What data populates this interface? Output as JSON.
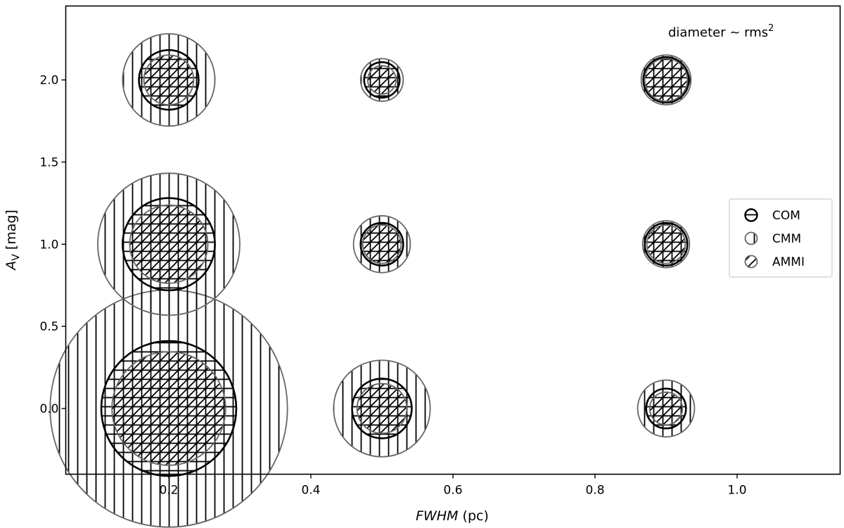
{
  "chart_data": {
    "type": "scatter",
    "xlabel_italic": "FWHM",
    "xlabel_rest": " (pc)",
    "ylabel_main": "A",
    "ylabel_sub": "V",
    "ylabel_rest": " [mag]",
    "annotation": "diameter ~ rms",
    "annotation_sup": "2",
    "xlim": [
      0.055,
      1.145
    ],
    "ylim": [
      -0.4,
      2.45
    ],
    "xticks": [
      0.2,
      0.4,
      0.6,
      0.8,
      1.0
    ],
    "yticks": [
      0.0,
      0.5,
      1.0,
      1.5,
      2.0
    ],
    "grid": false,
    "legend_position": "right",
    "series": [
      {
        "name": "COM",
        "hatch": "horizontal",
        "edge_color": "#000000",
        "points": [
          {
            "x": 0.2,
            "y": 2.0,
            "d": 0.084
          },
          {
            "x": 0.5,
            "y": 2.0,
            "d": 0.05
          },
          {
            "x": 0.9,
            "y": 2.0,
            "d": 0.064
          },
          {
            "x": 0.2,
            "y": 1.0,
            "d": 0.13
          },
          {
            "x": 0.5,
            "y": 1.0,
            "d": 0.06
          },
          {
            "x": 0.9,
            "y": 1.0,
            "d": 0.06
          },
          {
            "x": 0.2,
            "y": 0.0,
            "d": 0.19
          },
          {
            "x": 0.5,
            "y": 0.0,
            "d": 0.084
          },
          {
            "x": 0.9,
            "y": 0.0,
            "d": 0.056
          }
        ]
      },
      {
        "name": "CMM",
        "hatch": "vertical",
        "edge_color": "#666666",
        "points": [
          {
            "x": 0.2,
            "y": 2.0,
            "d": 0.13
          },
          {
            "x": 0.5,
            "y": 2.0,
            "d": 0.06
          },
          {
            "x": 0.9,
            "y": 2.0,
            "d": 0.07
          },
          {
            "x": 0.2,
            "y": 1.0,
            "d": 0.2
          },
          {
            "x": 0.5,
            "y": 1.0,
            "d": 0.08
          },
          {
            "x": 0.9,
            "y": 1.0,
            "d": 0.066
          },
          {
            "x": 0.2,
            "y": 0.0,
            "d": 0.334
          },
          {
            "x": 0.5,
            "y": 0.0,
            "d": 0.136
          },
          {
            "x": 0.9,
            "y": 0.0,
            "d": 0.08
          }
        ]
      },
      {
        "name": "AMMI",
        "hatch": "diagonal",
        "edge_color": "#666666",
        "points": [
          {
            "x": 0.2,
            "y": 2.0,
            "d": 0.07
          },
          {
            "x": 0.5,
            "y": 2.0,
            "d": 0.04
          },
          {
            "x": 0.9,
            "y": 2.0,
            "d": 0.06
          },
          {
            "x": 0.2,
            "y": 1.0,
            "d": 0.11
          },
          {
            "x": 0.5,
            "y": 1.0,
            "d": 0.054
          },
          {
            "x": 0.9,
            "y": 1.0,
            "d": 0.054
          },
          {
            "x": 0.2,
            "y": 0.0,
            "d": 0.16
          },
          {
            "x": 0.5,
            "y": 0.0,
            "d": 0.07
          },
          {
            "x": 0.9,
            "y": 0.0,
            "d": 0.046
          }
        ]
      }
    ]
  }
}
